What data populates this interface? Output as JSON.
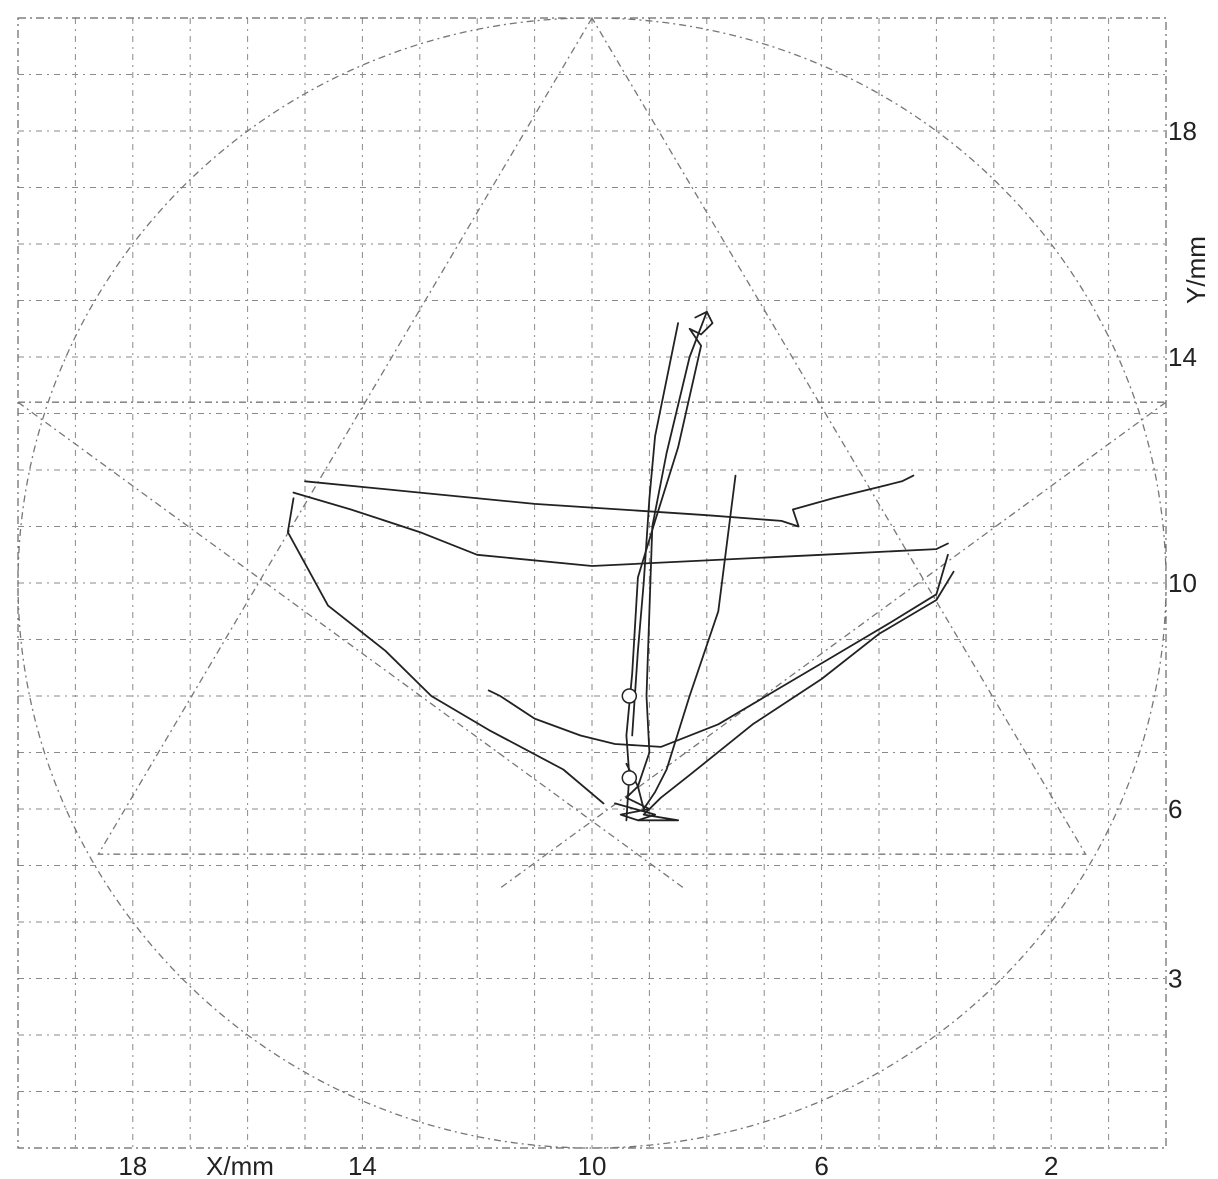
{
  "chart_data": {
    "type": "line",
    "xlabel": "X/mm",
    "ylabel": "Y/mm",
    "x_axis_direction": "reversed",
    "x_ticks": [
      18,
      14,
      10,
      6,
      2
    ],
    "y_ticks": [
      3,
      6,
      10,
      14,
      18
    ],
    "xlim": [
      20,
      0
    ],
    "ylim": [
      0,
      20
    ],
    "grid": true,
    "guide_circle": {
      "center": [
        10,
        10
      ],
      "radius": 10
    },
    "guide_triangle": [
      [
        10,
        20
      ],
      [
        18.6,
        5.2
      ],
      [
        1.4,
        5.2
      ]
    ],
    "guide_lines": [
      {
        "from": [
          20,
          13.2
        ],
        "to": [
          0,
          13.2
        ]
      },
      {
        "from": [
          20,
          13.2
        ],
        "to": [
          8.4,
          4.6
        ]
      },
      {
        "from": [
          0,
          13.2
        ],
        "to": [
          11.6,
          4.6
        ]
      }
    ],
    "traces": [
      [
        [
          8.2,
          14.7
        ],
        [
          8.0,
          14.8
        ],
        [
          7.9,
          14.6
        ],
        [
          8.1,
          14.4
        ],
        [
          8.3,
          14.5
        ],
        [
          8.1,
          14.2
        ],
        [
          8.5,
          12.4
        ],
        [
          8.9,
          11.1
        ],
        [
          9.2,
          10.1
        ],
        [
          9.3,
          8.4
        ],
        [
          9.4,
          7.3
        ],
        [
          9.35,
          6.6
        ],
        [
          9.4,
          5.8
        ]
      ],
      [
        [
          8.0,
          14.8
        ],
        [
          8.3,
          14.0
        ],
        [
          8.7,
          12.3
        ],
        [
          8.95,
          11.0
        ],
        [
          9.05,
          8.0
        ],
        [
          9.0,
          7.0
        ],
        [
          9.2,
          6.4
        ],
        [
          9.1,
          6.0
        ]
      ],
      [
        [
          8.5,
          14.6
        ],
        [
          8.9,
          12.6
        ],
        [
          9.0,
          11.5
        ],
        [
          9.1,
          10.0
        ],
        [
          9.2,
          8.8
        ],
        [
          9.3,
          7.3
        ]
      ],
      [
        [
          7.5,
          11.9
        ],
        [
          7.8,
          9.5
        ],
        [
          8.3,
          8.0
        ],
        [
          8.7,
          6.7
        ],
        [
          8.9,
          6.3
        ],
        [
          9.1,
          6.0
        ]
      ],
      [
        [
          15.0,
          11.8
        ],
        [
          13.0,
          11.6
        ],
        [
          11.0,
          11.4
        ],
        [
          9.5,
          11.3
        ],
        [
          8.0,
          11.2
        ],
        [
          6.7,
          11.1
        ],
        [
          6.4,
          11.0
        ],
        [
          6.5,
          11.3
        ],
        [
          5.8,
          11.5
        ],
        [
          4.6,
          11.8
        ],
        [
          4.4,
          11.9
        ]
      ],
      [
        [
          15.2,
          11.6
        ],
        [
          14.2,
          11.3
        ],
        [
          13.0,
          10.9
        ],
        [
          12.0,
          10.5
        ],
        [
          10.0,
          10.3
        ],
        [
          8.0,
          10.4
        ],
        [
          6.0,
          10.5
        ],
        [
          4.0,
          10.6
        ],
        [
          3.8,
          10.7
        ]
      ],
      [
        [
          15.2,
          11.5
        ],
        [
          15.3,
          10.9
        ],
        [
          14.6,
          9.6
        ],
        [
          13.6,
          8.8
        ],
        [
          12.8,
          8.0
        ],
        [
          11.8,
          7.4
        ],
        [
          10.5,
          6.7
        ],
        [
          9.8,
          6.1
        ]
      ],
      [
        [
          11.8,
          8.1
        ],
        [
          11.6,
          8.0
        ],
        [
          11.0,
          7.6
        ],
        [
          10.2,
          7.3
        ],
        [
          9.6,
          7.15
        ],
        [
          8.8,
          7.1
        ],
        [
          7.8,
          7.5
        ],
        [
          6.8,
          8.1
        ],
        [
          5.8,
          8.7
        ],
        [
          4.8,
          9.3
        ],
        [
          4.0,
          9.8
        ],
        [
          3.8,
          10.5
        ]
      ],
      [
        [
          3.7,
          10.2
        ],
        [
          4.0,
          9.7
        ],
        [
          5.0,
          9.1
        ],
        [
          6.0,
          8.3
        ],
        [
          7.2,
          7.5
        ],
        [
          8.3,
          6.6
        ],
        [
          8.8,
          6.2
        ],
        [
          9.1,
          5.9
        ],
        [
          8.5,
          5.8
        ],
        [
          9.2,
          5.8
        ]
      ],
      [
        [
          9.4,
          6.8
        ],
        [
          9.2,
          6.4
        ],
        [
          9.4,
          6.2
        ],
        [
          9.0,
          6.0
        ],
        [
          9.5,
          5.9
        ],
        [
          9.2,
          5.8
        ],
        [
          8.9,
          5.9
        ],
        [
          9.6,
          6.1
        ]
      ]
    ],
    "markers": [
      [
        9.35,
        8.0
      ],
      [
        9.35,
        6.55
      ]
    ]
  }
}
